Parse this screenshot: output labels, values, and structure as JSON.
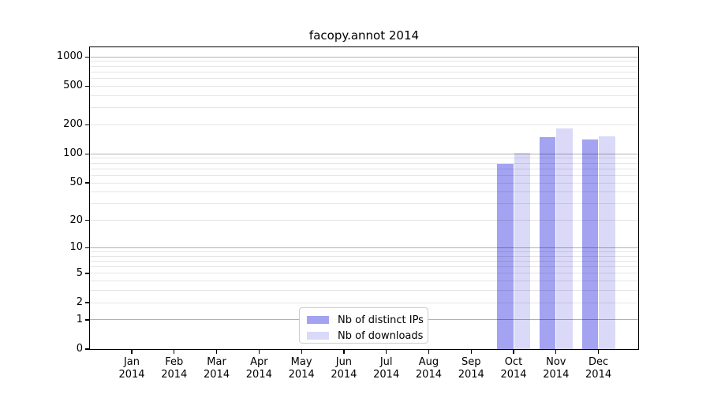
{
  "title": "facopy.annot 2014",
  "chart_data": {
    "type": "bar",
    "title": "facopy.annot 2014",
    "categories": [
      "Jan 2014",
      "Feb 2014",
      "Mar 2014",
      "Apr 2014",
      "May 2014",
      "Jun 2014",
      "Jul 2014",
      "Aug 2014",
      "Sep 2014",
      "Oct 2014",
      "Nov 2014",
      "Dec 2014"
    ],
    "series": [
      {
        "name": "Nb of distinct IPs",
        "color": "#a3a3f2",
        "values": [
          0,
          0,
          0,
          0,
          0,
          0,
          0,
          0,
          0,
          79,
          150,
          141
        ]
      },
      {
        "name": "Nb of downloads",
        "color": "#dadaf8",
        "values": [
          0,
          0,
          0,
          0,
          0,
          0,
          0,
          0,
          0,
          102,
          184,
          152
        ]
      }
    ],
    "xlabel": "",
    "ylabel": "",
    "yscale": "log1p",
    "ylim": [
      0,
      1258
    ],
    "yticks": [
      0,
      1,
      2,
      5,
      10,
      20,
      50,
      100,
      200,
      500,
      1000
    ],
    "grid": "horizontal; dark lines at 1,10,100,1000; light minor lines at 2-9 per decade",
    "legend_position": "lower center"
  }
}
